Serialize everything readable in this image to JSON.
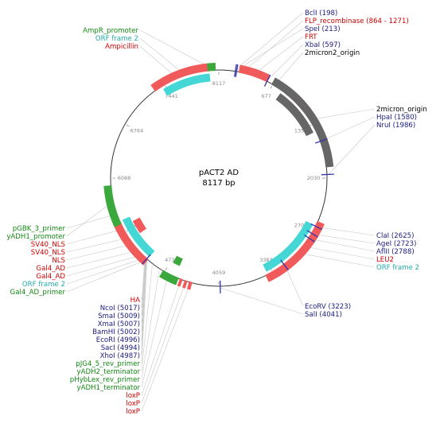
{
  "title": "pACT2 AD",
  "length_label": "8117 bp",
  "total_bp": 8117,
  "colors": {
    "feature_red": "#f05a5a",
    "feature_cyan": "#45d6d6",
    "feature_green": "#3aa83a",
    "feature_gray": "#666666",
    "label_navy": "#1a1a80",
    "label_red": "#cc0000",
    "label_green": "#118811",
    "label_cyan": "#22aaaa",
    "label_black": "#000000",
    "leader": "#c8c8c8"
  },
  "ticks": [
    "8117",
    "677",
    "1354",
    "2030",
    "2705",
    "3383",
    "4059",
    "4736",
    "5412",
    "6088",
    "6764",
    "7441"
  ],
  "features": [
    {
      "name": "flp-recombinase",
      "start": 864,
      "end": 1271,
      "color": "red",
      "track": 0
    },
    {
      "name": "ampicillin",
      "start": 7300,
      "end": 8005,
      "color": "red",
      "track": 0
    },
    {
      "name": "orf-frame-2-top",
      "start": 7395,
      "end": 8005,
      "color": "cyan",
      "track": 1
    },
    {
      "name": "ampr-promoter",
      "start": 7985,
      "end": 8080,
      "color": "green",
      "track": 0
    },
    {
      "name": "frt",
      "start": 240,
      "end": 600,
      "color": "red",
      "track": 0
    },
    {
      "name": "two-micron-origin-outer",
      "start": 660,
      "end": 1900,
      "color": "gray",
      "track": 0
    },
    {
      "name": "two-micron-origin-inner",
      "start": 810,
      "end": 1450,
      "color": "gray",
      "track": 1
    },
    {
      "name": "leu2",
      "start": 2560,
      "end": 3480,
      "color": "red",
      "track": 0
    },
    {
      "name": "orf-frame-2-right",
      "start": 2620,
      "end": 3450,
      "color": "cyan",
      "track": 1
    },
    {
      "name": "loxp-1",
      "start": 4380,
      "end": 4420,
      "color": "red",
      "track": 0
    },
    {
      "name": "loxp-2",
      "start": 4440,
      "end": 4475,
      "color": "red",
      "track": 0
    },
    {
      "name": "loxp-3",
      "start": 4500,
      "end": 4535,
      "color": "red",
      "track": 0
    },
    {
      "name": "ha-tag",
      "start": 4550,
      "end": 4760,
      "color": "green",
      "track": 0
    },
    {
      "name": "adh-terminator",
      "start": 4600,
      "end": 4700,
      "color": "green",
      "track": 2
    },
    {
      "name": "gal4-ad",
      "start": 4980,
      "end": 5550,
      "color": "red",
      "track": 0
    },
    {
      "name": "orf-frame-2-left",
      "start": 4990,
      "end": 5560,
      "color": "cyan",
      "track": 1
    },
    {
      "name": "sv40-nls",
      "start": 5300,
      "end": 5490,
      "color": "red",
      "track": 2
    },
    {
      "name": "adh1-promoter",
      "start": 5520,
      "end": 6000,
      "color": "green",
      "track": 0
    }
  ],
  "site_marks": [
    {
      "name": "site-198",
      "pos": 198
    },
    {
      "name": "site-213",
      "pos": 213
    },
    {
      "name": "site-597",
      "pos": 597
    },
    {
      "name": "site-1580",
      "pos": 1580
    },
    {
      "name": "site-1986",
      "pos": 1986
    },
    {
      "name": "site-2625",
      "pos": 2625
    },
    {
      "name": "site-2723",
      "pos": 2723
    },
    {
      "name": "site-2788",
      "pos": 2788
    },
    {
      "name": "site-3223",
      "pos": 3223
    },
    {
      "name": "site-4041",
      "pos": 4041
    },
    {
      "name": "site-5000",
      "pos": 5000
    }
  ],
  "labels_top": [
    {
      "text": "AmpR_promoter",
      "color": "green",
      "target": 8040
    },
    {
      "text": "ORF frame 2",
      "color": "cyan",
      "target": 7700
    },
    {
      "text": "Ampicillin",
      "color": "red",
      "target": 7600
    }
  ],
  "labels_top_right": [
    {
      "text": "BclI (198)",
      "color": "navy",
      "target": 198
    },
    {
      "text": "FLP_recombinase (864 - 1271)",
      "color": "red",
      "target": 300
    },
    {
      "text": "SpeI (213)",
      "color": "navy",
      "target": 213
    },
    {
      "text": "FRT",
      "color": "red",
      "target": 420
    },
    {
      "text": "XbaI (597)",
      "color": "navy",
      "target": 597
    },
    {
      "text": "2micron2_origin",
      "color": "black",
      "target": 700
    }
  ],
  "labels_right": [
    {
      "text": "2micron_origin",
      "color": "black",
      "target": 1300
    },
    {
      "text": "HpaI (1580)",
      "color": "navy",
      "target": 1580
    },
    {
      "text": "NruI (1986)",
      "color": "navy",
      "target": 1986
    }
  ],
  "labels_right_lower": [
    {
      "text": "ClaI (2625)",
      "color": "navy",
      "target": 2625
    },
    {
      "text": "AgeI (2723)",
      "color": "navy",
      "target": 2723
    },
    {
      "text": "AflII (2788)",
      "color": "navy",
      "target": 2788
    },
    {
      "text": "LEU2",
      "color": "red",
      "target": 2900
    },
    {
      "text": "ORF frame 2",
      "color": "cyan",
      "target": 3000
    }
  ],
  "labels_bottom_right": [
    {
      "text": "EcoRV (3223)",
      "color": "navy",
      "target": 3223
    },
    {
      "text": "SalI (4041)",
      "color": "navy",
      "target": 4041
    }
  ],
  "labels_left": [
    {
      "text": "pGBK_3_primer",
      "color": "green",
      "target": 5650
    },
    {
      "text": "yADH1_promoter",
      "color": "green",
      "target": 5800
    },
    {
      "text": "SV40_NLS",
      "color": "red",
      "target": 5460
    },
    {
      "text": "SV40_NLS",
      "color": "red",
      "target": 5340
    },
    {
      "text": "NLS",
      "color": "red",
      "target": 5250
    },
    {
      "text": "Gal4_AD",
      "color": "red",
      "target": 5150
    },
    {
      "text": "Gal4_AD",
      "color": "red",
      "target": 5080
    },
    {
      "text": "ORF frame 2",
      "color": "cyan",
      "target": 5030
    },
    {
      "text": "Gal4_AD_primer",
      "color": "green",
      "target": 5000
    }
  ],
  "labels_bottom": [
    {
      "text": "HA",
      "color": "red",
      "target": 4990
    },
    {
      "text": "NcoI (5017)",
      "color": "navy",
      "target": 5017
    },
    {
      "text": "SmaI (5009)",
      "color": "navy",
      "target": 5009
    },
    {
      "text": "XmaI (5007)",
      "color": "navy",
      "target": 5007
    },
    {
      "text": "BamHI (5002)",
      "color": "navy",
      "target": 5002
    },
    {
      "text": "EcoRI (4996)",
      "color": "navy",
      "target": 4996
    },
    {
      "text": "SacI (4994)",
      "color": "navy",
      "target": 4994
    },
    {
      "text": "XhoI (4987)",
      "color": "navy",
      "target": 4987
    },
    {
      "text": "pJG4_5_rev_primer",
      "color": "green",
      "target": 4980
    },
    {
      "text": "yADH2_terminator",
      "color": "green",
      "target": 4900
    },
    {
      "text": "pHybLex_rev_primer",
      "color": "green",
      "target": 4800
    },
    {
      "text": "yADH1_terminator",
      "color": "green",
      "target": 4680
    },
    {
      "text": "loxP",
      "color": "red",
      "target": 4520
    },
    {
      "text": "loxP",
      "color": "red",
      "target": 4460
    },
    {
      "text": "loxP",
      "color": "red",
      "target": 4400
    }
  ]
}
